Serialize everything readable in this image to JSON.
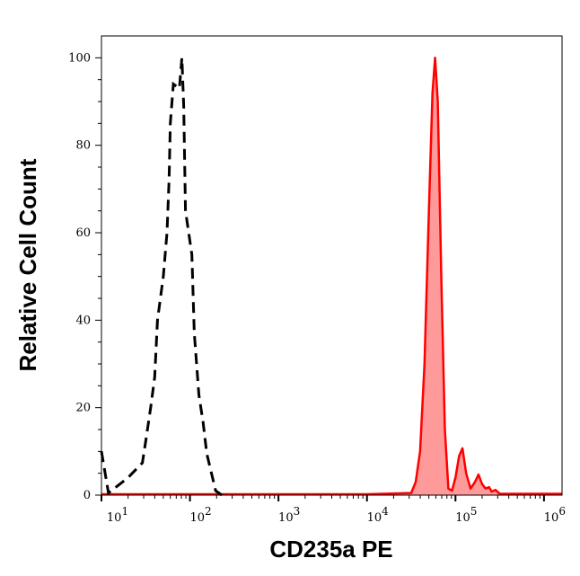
{
  "chart_data": {
    "type": "area",
    "title": "",
    "xlabel": "CD235a PE",
    "ylabel": "Relative Cell Count",
    "xscale": "log",
    "xlim": [
      10,
      1600000
    ],
    "ylim": [
      0,
      105
    ],
    "grid": false,
    "x_tick_labels": [
      {
        "value": 10,
        "base": "10",
        "exp": "1"
      },
      {
        "value": 100,
        "base": "10",
        "exp": "2"
      },
      {
        "value": 1000,
        "base": "10",
        "exp": "3"
      },
      {
        "value": 10000,
        "base": "10",
        "exp": "4"
      },
      {
        "value": 100000,
        "base": "10",
        "exp": "5"
      },
      {
        "value": 1000000,
        "base": "10",
        "exp": "6"
      }
    ],
    "y_ticks": [
      0,
      20,
      40,
      60,
      80,
      100
    ],
    "y_tick_labels": [
      "0",
      "20",
      "40",
      "60",
      "80",
      "100"
    ],
    "series": [
      {
        "style": "dashed-line",
        "color": "#000000",
        "x": [
          10,
          12,
          20,
          29,
          32,
          36,
          40,
          43,
          50,
          55,
          58,
          60,
          65,
          76,
          81,
          85,
          89,
          105,
          112,
          126,
          141,
          155,
          195,
          229
        ],
        "y": [
          10,
          0.5,
          4,
          7.4,
          13,
          20,
          27,
          40,
          50,
          60,
          72,
          85,
          94,
          93,
          100,
          89,
          65,
          55,
          37,
          23,
          16.5,
          9.5,
          1,
          0
        ]
      },
      {
        "style": "filled",
        "color": "#ff0000",
        "fill": "#ff9a9a",
        "x": [
          10,
          10000,
          31600,
          35500,
          39800,
          44700,
          50100,
          55000,
          58900,
          63100,
          69200,
          75900,
          83200,
          91200,
          100000,
          110000,
          120000,
          132000,
          148000,
          166000,
          182000,
          200000,
          219000,
          240000,
          257000,
          282000,
          316000,
          1580000
        ],
        "y": [
          0.2,
          0.2,
          0.5,
          3,
          10,
          30,
          65,
          92,
          100,
          90,
          50,
          15,
          1.5,
          1,
          4,
          9,
          10.7,
          5,
          1.5,
          3,
          4.7,
          2.5,
          1.5,
          1.8,
          0.8,
          1.2,
          0.3,
          0.3
        ]
      }
    ]
  }
}
